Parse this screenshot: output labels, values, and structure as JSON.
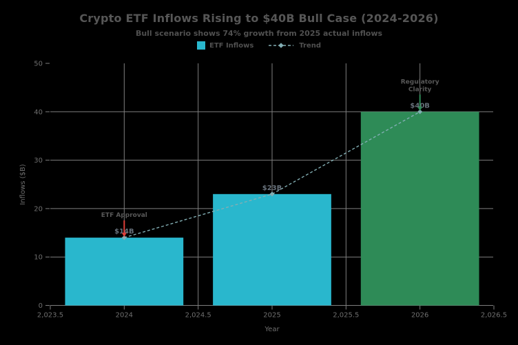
{
  "chart_data": {
    "type": "bar",
    "title": "Crypto ETF Inflows Rising to $40B Bull Case (2024-2026)",
    "subtitle": "Bull scenario shows 74% growth from 2025 actual inflows",
    "xlabel": "Year",
    "ylabel": "Inflows ($B)",
    "xlim": [
      2023.5,
      2026.5
    ],
    "ylim": [
      0,
      50
    ],
    "grid": true,
    "categories": [
      2024,
      2025,
      2026
    ],
    "values": [
      14,
      23,
      40
    ],
    "bar_width_years": 0.8,
    "bar_colors": [
      "#29b7cd",
      "#29b7cd",
      "#2e8b57"
    ],
    "bar_labels": [
      "$14B",
      "$23B",
      "$40B"
    ],
    "xticks": {
      "values": [
        2023.5,
        2024,
        2024.5,
        2025,
        2025.5,
        2026,
        2026.5
      ],
      "labels": [
        "2,023.5",
        "2024",
        "2,024.5",
        "2025",
        "2,025.5",
        "2026",
        "2,026.5"
      ]
    },
    "yticks": {
      "values": [
        0,
        10,
        20,
        30,
        40,
        50
      ],
      "labels": [
        "0",
        "10",
        "20",
        "30",
        "40",
        "50"
      ]
    },
    "legend": [
      {
        "label": "ETF Inflows",
        "swatch": "square",
        "color": "#29b7cd"
      },
      {
        "label": "Trend",
        "swatch": "dashed-line-diamond",
        "color": "#82aeb3"
      }
    ],
    "trend": {
      "name": "Trend",
      "x": [
        2024,
        2025,
        2026
      ],
      "y": [
        14,
        23,
        40
      ],
      "color": "#82aeb3",
      "style": "dashed",
      "marker": "diamond"
    },
    "annotations": [
      {
        "text_lines": [
          "ETF Approval"
        ],
        "x": 2024,
        "y": 14,
        "arrow_color": "#e0403a"
      },
      {
        "text_lines": [
          "Regulatory",
          "Clarity"
        ],
        "x": 2026,
        "y": 40,
        "arrow_color": "#2e8b57"
      }
    ],
    "colors": {
      "background": "#000000",
      "grid": "#7f7f7f",
      "title": "#565656",
      "subtitle": "#505050",
      "tick": "#6f6f6f",
      "axis_title": "#6f6f6f",
      "annotation": "#585858",
      "data_label": "#66707a"
    }
  }
}
